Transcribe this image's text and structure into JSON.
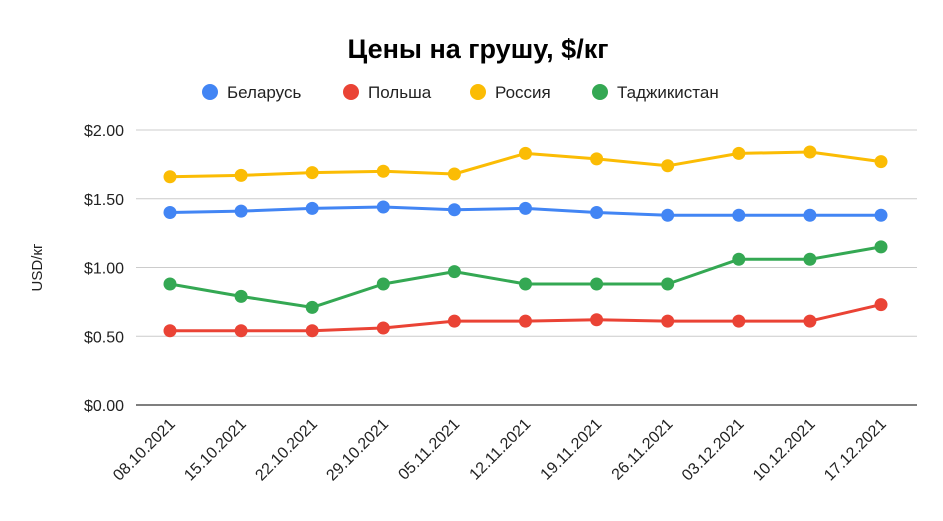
{
  "chart_data": {
    "type": "line",
    "title": "Цены на грушу, $/кг",
    "xlabel": "",
    "ylabel": "USD/кг",
    "x": [
      "08.10.2021",
      "15.10.2021",
      "22.10.2021",
      "29.10.2021",
      "05.11.2021",
      "12.11.2021",
      "19.11.2021",
      "26.11.2021",
      "03.12.2021",
      "10.12.2021",
      "17.12.2021"
    ],
    "ylim": [
      0,
      2
    ],
    "yticks": [
      "$0.00",
      "$0.50",
      "$1.00",
      "$1.50",
      "$2.00"
    ],
    "grid": true,
    "legend_position": "top",
    "series": [
      {
        "name": "Беларусь",
        "color": "#4285F4",
        "values": [
          1.4,
          1.41,
          1.43,
          1.44,
          1.42,
          1.43,
          1.4,
          1.38,
          1.38,
          1.38,
          1.38
        ]
      },
      {
        "name": "Польша",
        "color": "#EA4335",
        "values": [
          0.54,
          0.54,
          0.54,
          0.56,
          0.61,
          0.61,
          0.62,
          0.61,
          0.61,
          0.61,
          0.73
        ]
      },
      {
        "name": "Россия",
        "color": "#FBBC04",
        "values": [
          1.66,
          1.67,
          1.69,
          1.7,
          1.68,
          1.83,
          1.79,
          1.74,
          1.83,
          1.84,
          1.77
        ]
      },
      {
        "name": "Таджикистан",
        "color": "#34A853",
        "values": [
          0.88,
          0.79,
          0.71,
          0.88,
          0.97,
          0.88,
          0.88,
          0.88,
          1.06,
          1.06,
          1.15
        ]
      }
    ]
  }
}
